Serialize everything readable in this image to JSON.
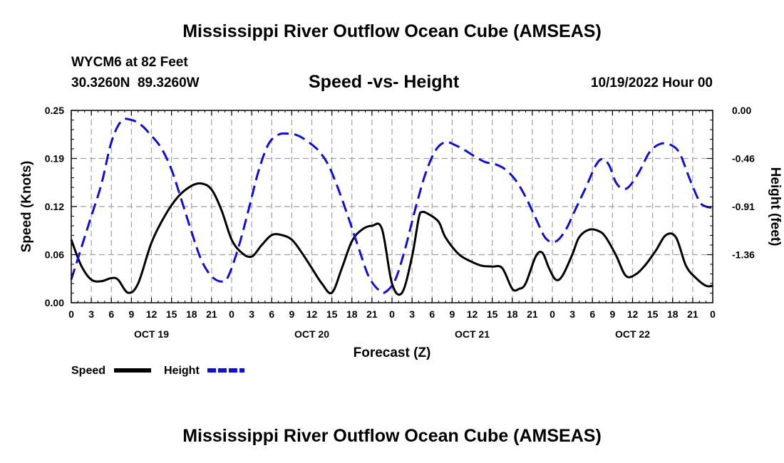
{
  "page": {
    "title_top": "Mississippi River Outflow Ocean Cube (AMSEAS)",
    "title_bottom": "Mississippi River Outflow Ocean Cube (AMSEAS)",
    "station": "WYCM6 at 82 Feet",
    "coords": "30.3260N  89.3260W",
    "subtitle": "Speed -vs- Height",
    "datetime": "10/19/2022 Hour 00"
  },
  "colors": {
    "speed": "#000000",
    "height": "#1010cc",
    "grid": "#a0a0a0"
  },
  "chart_data": {
    "type": "line",
    "xlabel": "Forecast (Z)",
    "ylabel_left": "Speed (Knots)",
    "ylabel_right": "Height (feet)",
    "xlim": [
      0,
      96
    ],
    "x_tick_step_hours": 3,
    "x_tick_labels": [
      "0",
      "3",
      "6",
      "9",
      "12",
      "15",
      "18",
      "21",
      "0",
      "3",
      "6",
      "9",
      "12",
      "15",
      "18",
      "21",
      "0",
      "3",
      "6",
      "9",
      "12",
      "15",
      "18",
      "21",
      "0",
      "3",
      "6",
      "9",
      "12",
      "15",
      "18",
      "21",
      "0"
    ],
    "day_labels": [
      {
        "label": "OCT 19",
        "hour": 12
      },
      {
        "label": "OCT 20",
        "hour": 36
      },
      {
        "label": "OCT 21",
        "hour": 60
      },
      {
        "label": "OCT 22",
        "hour": 84
      }
    ],
    "ylim_left": [
      0,
      0.25
    ],
    "left_ticks": [
      {
        "value": 0.0,
        "label": "0.00"
      },
      {
        "value": 0.0625,
        "label": "0.06"
      },
      {
        "value": 0.125,
        "label": "0.12"
      },
      {
        "value": 0.1875,
        "label": "0.19"
      },
      {
        "value": 0.25,
        "label": "0.25"
      }
    ],
    "ylim_right": [
      -1.82,
      0
    ],
    "right_ticks": [
      {
        "value": 0.0,
        "label": "0.00"
      },
      {
        "value": -0.455,
        "label": "-0.46"
      },
      {
        "value": -0.91,
        "label": "-0.91"
      },
      {
        "value": -1.365,
        "label": "-1.36"
      }
    ],
    "series": [
      {
        "name": "Speed",
        "axis": "left",
        "dash": false,
        "x": [
          0,
          1.5,
          3,
          4.5,
          6,
          7,
          8.5,
          10,
          12,
          14,
          16,
          18,
          19.5,
          21,
          22.5,
          24,
          25.5,
          27,
          28.5,
          30,
          31.5,
          33,
          34.5,
          36,
          37.5,
          39,
          40.5,
          42,
          43.5,
          45,
          46.5,
          48,
          49.5,
          51,
          52,
          52.5,
          53.5,
          55,
          56,
          58,
          60,
          61.5,
          63,
          64.5,
          66,
          67,
          68,
          69.5,
          70.5,
          71.5,
          72.5,
          73.5,
          75,
          76,
          77.5,
          79,
          80,
          81.5,
          83,
          84.5,
          86,
          87.5,
          89,
          90.5,
          92,
          93.5,
          95,
          96
        ],
        "y": [
          0.082,
          0.048,
          0.03,
          0.028,
          0.032,
          0.03,
          0.013,
          0.025,
          0.078,
          0.113,
          0.138,
          0.152,
          0.155,
          0.147,
          0.12,
          0.082,
          0.065,
          0.06,
          0.075,
          0.088,
          0.088,
          0.082,
          0.065,
          0.045,
          0.025,
          0.013,
          0.045,
          0.08,
          0.095,
          0.1,
          0.096,
          0.025,
          0.013,
          0.06,
          0.11,
          0.118,
          0.115,
          0.105,
          0.085,
          0.063,
          0.053,
          0.048,
          0.047,
          0.045,
          0.018,
          0.018,
          0.025,
          0.06,
          0.065,
          0.045,
          0.03,
          0.035,
          0.063,
          0.085,
          0.095,
          0.093,
          0.085,
          0.062,
          0.035,
          0.037,
          0.05,
          0.068,
          0.088,
          0.085,
          0.048,
          0.032,
          0.022,
          0.022
        ]
      },
      {
        "name": "Height",
        "axis": "right",
        "dash": true,
        "x": [
          0,
          1.5,
          3,
          4.5,
          6,
          7.5,
          9,
          10.5,
          12,
          13.5,
          15,
          16.5,
          18,
          19.5,
          21,
          22.5,
          23.5,
          25,
          26.5,
          28,
          29.5,
          31,
          32.5,
          34,
          35.5,
          37,
          38.5,
          40,
          41.5,
          43,
          44.5,
          46,
          47,
          48.5,
          50,
          51.5,
          53,
          54.5,
          56,
          57.5,
          59,
          60.5,
          62,
          63.5,
          65,
          66.5,
          68,
          69.5,
          71,
          72.5,
          74,
          75.5,
          77,
          78.5,
          79.5,
          80.5,
          81.5,
          82.5,
          83.5,
          85,
          86.5,
          88,
          89.5,
          91,
          92.5,
          94,
          95,
          96
        ],
        "y": [
          -1.6,
          -1.3,
          -1.0,
          -0.7,
          -0.3,
          -0.1,
          -0.09,
          -0.14,
          -0.24,
          -0.36,
          -0.56,
          -0.85,
          -1.15,
          -1.42,
          -1.57,
          -1.62,
          -1.57,
          -1.3,
          -0.95,
          -0.58,
          -0.32,
          -0.23,
          -0.22,
          -0.24,
          -0.3,
          -0.38,
          -0.52,
          -0.75,
          -1.02,
          -1.3,
          -1.57,
          -1.7,
          -1.72,
          -1.6,
          -1.3,
          -0.93,
          -0.6,
          -0.38,
          -0.3,
          -0.33,
          -0.38,
          -0.44,
          -0.49,
          -0.51,
          -0.56,
          -0.66,
          -0.82,
          -1.02,
          -1.21,
          -1.24,
          -1.13,
          -0.93,
          -0.73,
          -0.52,
          -0.46,
          -0.52,
          -0.68,
          -0.74,
          -0.72,
          -0.58,
          -0.4,
          -0.32,
          -0.32,
          -0.4,
          -0.64,
          -0.86,
          -0.91,
          -0.92
        ]
      }
    ],
    "legend": [
      {
        "label": "Speed",
        "color": "#000000",
        "dash": false
      },
      {
        "label": "Height",
        "color": "#1010cc",
        "dash": true
      }
    ],
    "legend_position": "bottom-left"
  }
}
